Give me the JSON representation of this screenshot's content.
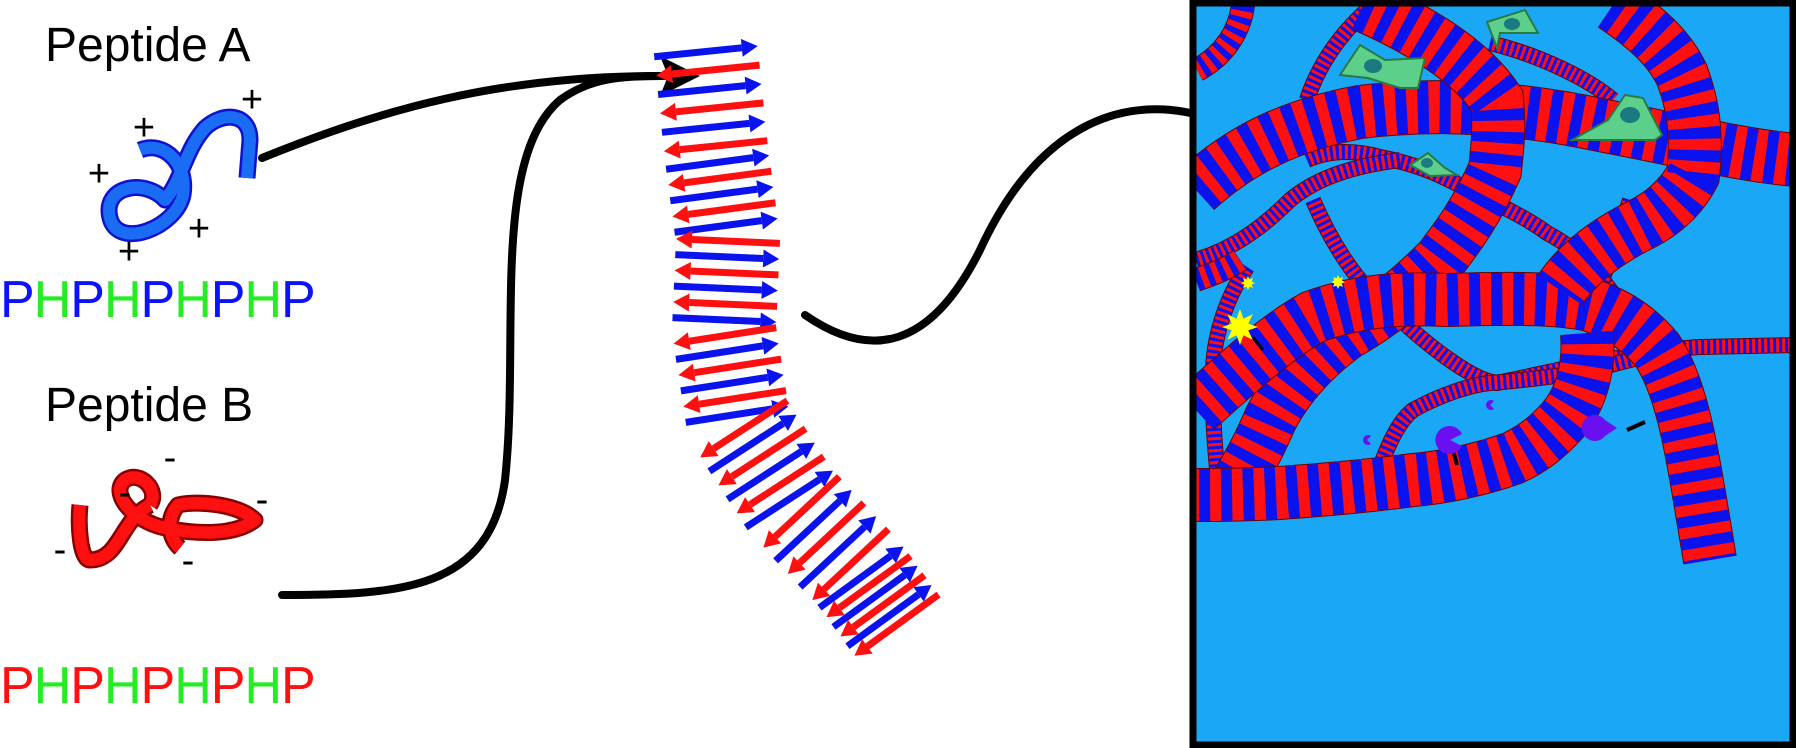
{
  "peptide_a": {
    "title": "Peptide A",
    "charge_symbol": "+",
    "sequence": [
      "P",
      "H",
      "P",
      "H",
      "P",
      "H",
      "P",
      "H",
      "P"
    ],
    "color": "#1a6cf5"
  },
  "peptide_b": {
    "title": "Peptide B",
    "charge_symbol": "-",
    "sequence": [
      "P",
      "H",
      "P",
      "H",
      "P",
      "H",
      "P",
      "H",
      "P"
    ],
    "color": "#ff1010"
  },
  "colors": {
    "P_in_A": "#0a12ff",
    "P_in_B": "#ff1010",
    "H": "#22ee22",
    "arrow_red": "#ff1010",
    "arrow_blue": "#0a12ee",
    "gel_background": "#1aa7f5",
    "cell": "#5cd08a",
    "cell_nucleus": "#1a7a80",
    "signal_star": "#ffff00",
    "receptor": "#6a10f0"
  },
  "icons": {
    "assembly_arrow": "curved-arrow-icon",
    "nanofiber": "beta-sheet-nanofiber",
    "hydrogel": "nanofiber-hydrogel-network"
  }
}
